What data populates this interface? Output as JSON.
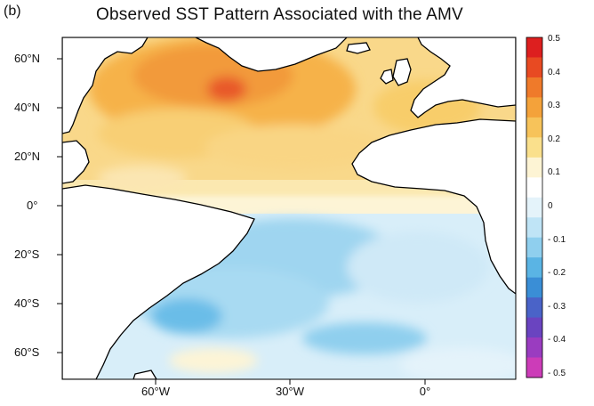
{
  "panel_label": "(b)",
  "title": "Observed SST Pattern Associated with the AMV",
  "lat_ticks": [
    "60°N",
    "40°N",
    "20°N",
    "0°",
    "20°S",
    "40°S",
    "60°S"
  ],
  "lon_ticks": [
    "60°W",
    "30°W",
    "0°"
  ],
  "colorbar": {
    "labels": [
      "0.5",
      "0.4",
      "0.3",
      "0.2",
      "0.1",
      "0",
      "- 0.1",
      "- 0.2",
      "- 0.3",
      "- 0.4",
      "- 0.5"
    ],
    "colors": [
      "#dd1f1f",
      "#e84a22",
      "#ef7a2a",
      "#f4a23a",
      "#f7c35a",
      "#fae08c",
      "#fdf4d4",
      "#ffffff",
      "#e4f3fa",
      "#bfe4f6",
      "#8fcfee",
      "#5ab4e4",
      "#3a8ed6",
      "#4a63c8",
      "#6a44c0",
      "#9a3cc0",
      "#cc3cb8"
    ]
  },
  "palette": {
    "land": "#ffffff",
    "coast": "#000000"
  }
}
